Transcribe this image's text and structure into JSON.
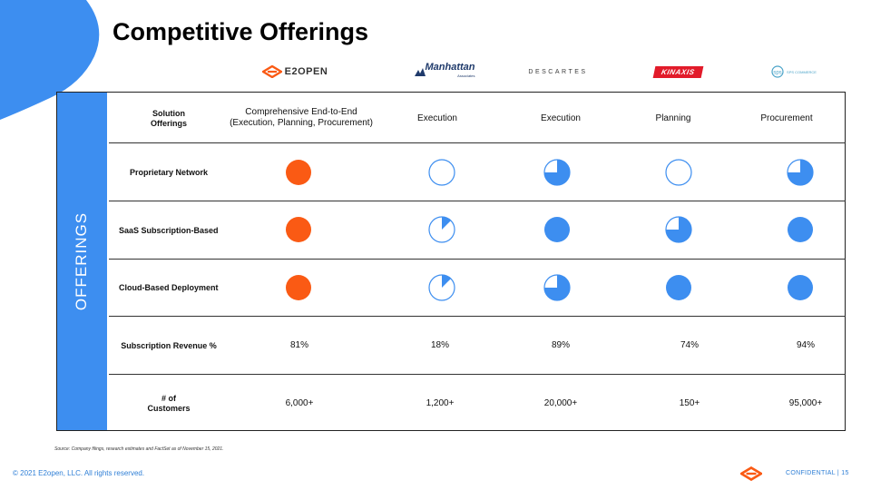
{
  "title": "Competitive Offerings",
  "side_label": "OFFERINGS",
  "brand_color": "#3d8ef0",
  "e2open_color": "#fa5a14",
  "competitors": [
    {
      "name": "E2OPEN",
      "logo_icon": "e2open-logo-icon"
    },
    {
      "name": "Manhattan",
      "sub": "Associates",
      "logo_icon": "manhattan-logo-icon"
    },
    {
      "name": "DESCARTES",
      "logo_icon": "descartes-logo-icon"
    },
    {
      "name": "KINAXIS",
      "logo_icon": "kinaxis-logo-icon"
    },
    {
      "name": "SPS COMMERCE",
      "logo_icon": "sps-commerce-logo-icon"
    }
  ],
  "header_row": {
    "label": "Solution\nOfferings",
    "values": [
      "Comprehensive End-to-End\n(Execution, Planning, Procurement)",
      "Execution",
      "Execution",
      "Planning",
      "Procurement"
    ]
  },
  "capability_rows": [
    {
      "label": "Proprietary Network",
      "coverage": [
        1,
        0,
        0.75,
        0,
        0.75
      ]
    },
    {
      "label": "SaaS Subscription-Based",
      "coverage": [
        1,
        0.125,
        1,
        0.75,
        1
      ]
    },
    {
      "label": "Cloud-Based Deployment",
      "coverage": [
        1,
        0.125,
        0.75,
        1,
        1
      ]
    }
  ],
  "revenue_row": {
    "label": "Subscription Revenue %",
    "values": [
      "81%",
      "18%",
      "89%",
      "74%",
      "94%"
    ]
  },
  "customers_row": {
    "label": "# of\nCustomers",
    "values": [
      "6,000+",
      "1,200+",
      "20,000+",
      "150+",
      "95,000+"
    ]
  },
  "footnote": "Source: Company filings, research estimates and FactSet as of November 15, 2021.",
  "copyright": "© 2021 E2open, LLC. All rights reserved.",
  "confidential": "CONFIDENTIAL   |   15"
}
